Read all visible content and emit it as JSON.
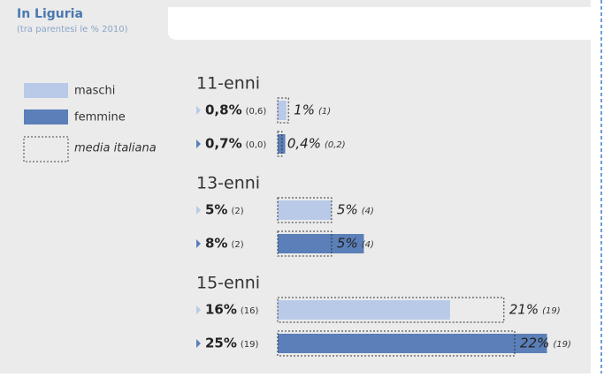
{
  "chart_data": {
    "type": "bar",
    "title": "In Liguria",
    "subtitle": "(tra parentesi le % 2010)",
    "categories": [
      "11-enni",
      "13-enni",
      "15-enni"
    ],
    "xlim": [
      0,
      22
    ],
    "average_name": "media italiana",
    "series": [
      {
        "name": "maschi",
        "color": "#b9cae9",
        "values": [
          0.8,
          5,
          16
        ],
        "value_labels": [
          "0,8%",
          "5%",
          "16%"
        ],
        "values_2010": [
          0.6,
          2,
          16
        ],
        "value_labels_2010": [
          "(0,6)",
          "(2)",
          "(16)"
        ],
        "average": [
          1,
          5,
          21
        ],
        "average_labels": [
          "1%",
          "5%",
          "21%"
        ],
        "average_2010": [
          1,
          4,
          19
        ],
        "average_labels_2010": [
          "(1)",
          "(4)",
          "(19)"
        ]
      },
      {
        "name": "femmine",
        "color": "#5b7fb8",
        "values": [
          0.7,
          8,
          25
        ],
        "value_labels": [
          "0,7%",
          "8%",
          "25%"
        ],
        "values_2010": [
          0.0,
          2,
          19
        ],
        "value_labels_2010": [
          "(0,0)",
          "(2)",
          "(19)"
        ],
        "average": [
          0.4,
          5,
          22
        ],
        "average_labels": [
          "0,4%",
          "5%",
          "22%"
        ],
        "average_2010": [
          0.2,
          4,
          19
        ],
        "average_labels_2010": [
          "(0,2)",
          "(4)",
          "(19)"
        ]
      }
    ]
  }
}
